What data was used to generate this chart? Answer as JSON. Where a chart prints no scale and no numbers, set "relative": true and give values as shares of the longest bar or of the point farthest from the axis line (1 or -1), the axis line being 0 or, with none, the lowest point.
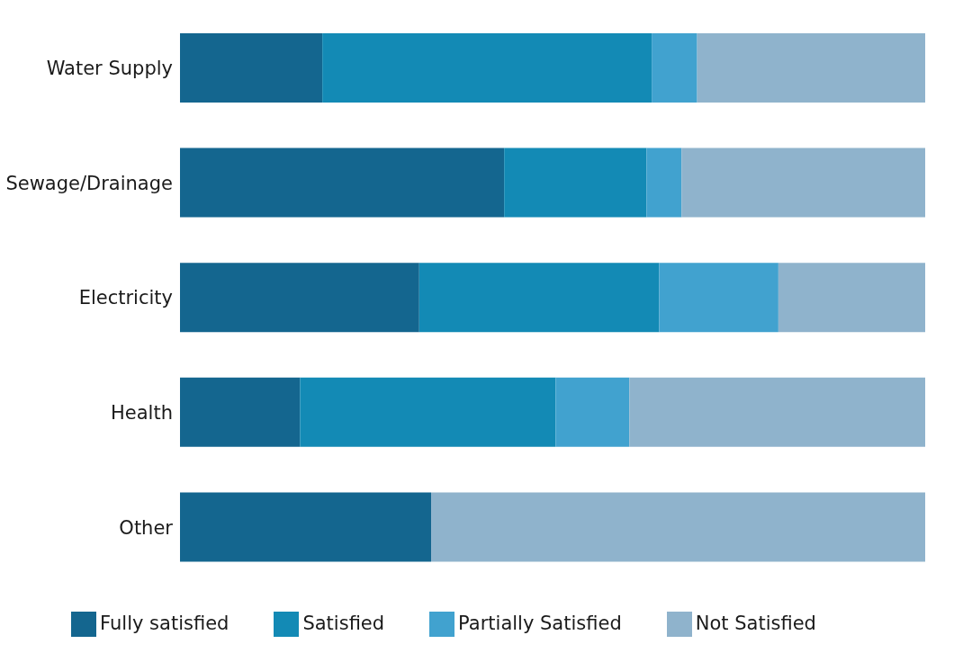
{
  "chart_data": {
    "type": "bar",
    "orientation": "horizontal",
    "stacked": true,
    "relative": true,
    "categories": [
      "Water Supply",
      "Sewage/Drainage",
      "Electricity",
      "Health",
      "Other"
    ],
    "series": [
      {
        "name": "Fully satisfied",
        "color": "#14668f",
        "values": [
          0.191,
          0.435,
          0.321,
          0.161,
          0.337
        ]
      },
      {
        "name": "Satisfied",
        "color": "#138ab5",
        "values": [
          0.442,
          0.191,
          0.322,
          0.343,
          null
        ]
      },
      {
        "name": "Partially Satisfied",
        "color": "#41a2cf",
        "values": [
          0.061,
          0.047,
          0.16,
          0.099,
          null
        ]
      },
      {
        "name": "Not Satisfied",
        "color": "#8fb3cc",
        "values": [
          0.306,
          0.327,
          0.197,
          0.397,
          0.663
        ]
      }
    ],
    "legend": "bottom",
    "grid": false
  }
}
